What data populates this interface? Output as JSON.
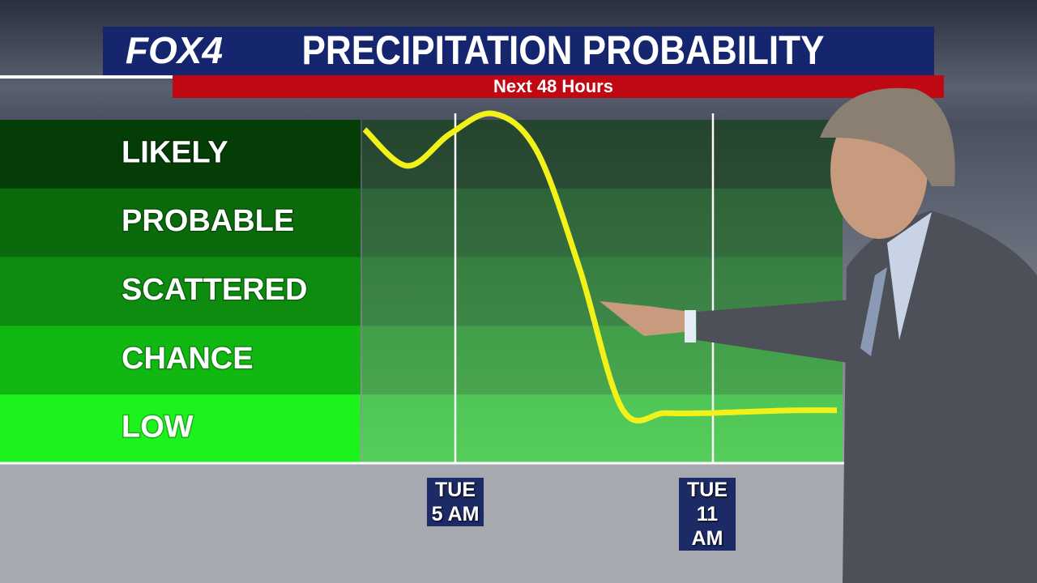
{
  "chart_data": {
    "type": "line",
    "brand": "FOX4",
    "title": "PRECIPITATION PROBABILITY",
    "subtitle": "Next 48 Hours",
    "categories": [
      null,
      null,
      "TUE 5 AM",
      null,
      null,
      null,
      null,
      null,
      "TUE 11 AM",
      null,
      null,
      null
    ],
    "series": [
      {
        "color": "#f2f21a",
        "values": [
          4.86,
          4.33,
          4.8,
          5.09,
          4.56,
          2.85,
          0.79,
          0.73,
          0.73,
          0.75,
          0.77,
          0.77
        ]
      }
    ],
    "ylim": [
      0,
      5
    ],
    "yticks": [
      {
        "value": 0.5,
        "label": "LOW"
      },
      {
        "value": 1.5,
        "label": "CHANCE"
      },
      {
        "value": 2.5,
        "label": "SCATTERED"
      },
      {
        "value": 3.5,
        "label": "PROBABLE"
      },
      {
        "value": 4.5,
        "label": "LIKELY"
      }
    ],
    "band_colors": [
      "#1ef21e",
      "#12b812",
      "#0d8c10",
      "#0a6a0c",
      "#053d06"
    ]
  }
}
